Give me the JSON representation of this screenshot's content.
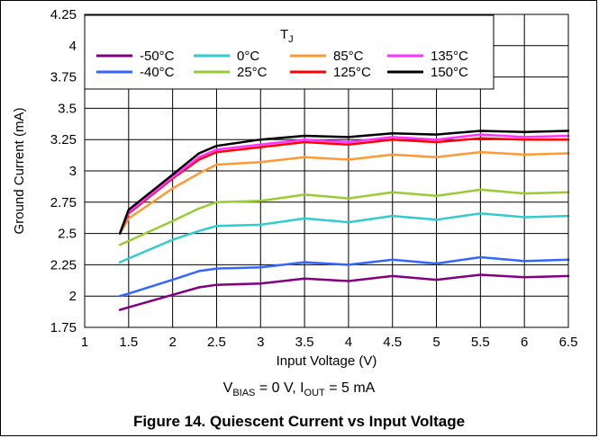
{
  "chart_data": {
    "type": "line",
    "title": "",
    "xlabel": "Input Voltage (V)",
    "ylabel": "Ground Current (mA)",
    "xlim": [
      1,
      6.5
    ],
    "ylim": [
      1.75,
      4.25
    ],
    "x_ticks": [
      "1",
      "1.5",
      "2",
      "2.5",
      "3",
      "3.5",
      "4",
      "4.5",
      "5",
      "5.5",
      "6",
      "6.5"
    ],
    "y_ticks": [
      "1.75",
      "2",
      "2.25",
      "2.5",
      "2.75",
      "3",
      "3.25",
      "3.5",
      "3.75",
      "4",
      "4.25"
    ],
    "grid": true,
    "legend": {
      "title_main": "T",
      "title_sub": "J",
      "placement": "top-right"
    },
    "series": [
      {
        "name": "-50°C",
        "color": "#800080",
        "x": [
          1.4,
          1.5,
          2,
          2.3,
          2.5,
          3,
          3.5,
          4,
          4.5,
          5,
          5.5,
          6,
          6.5
        ],
        "y": [
          1.89,
          1.91,
          2.01,
          2.07,
          2.09,
          2.1,
          2.14,
          2.12,
          2.16,
          2.13,
          2.17,
          2.15,
          2.16
        ]
      },
      {
        "name": "-40°C",
        "color": "#3366ff",
        "x": [
          1.4,
          1.5,
          2,
          2.3,
          2.5,
          3,
          3.5,
          4,
          4.5,
          5,
          5.5,
          6,
          6.5
        ],
        "y": [
          2.0,
          2.02,
          2.13,
          2.2,
          2.22,
          2.23,
          2.27,
          2.25,
          2.29,
          2.26,
          2.31,
          2.28,
          2.29
        ]
      },
      {
        "name": "0°C",
        "color": "#33cccc",
        "x": [
          1.4,
          1.5,
          2,
          2.3,
          2.5,
          3,
          3.5,
          4,
          4.5,
          5,
          5.5,
          6,
          6.5
        ],
        "y": [
          2.27,
          2.3,
          2.45,
          2.52,
          2.56,
          2.57,
          2.62,
          2.59,
          2.64,
          2.61,
          2.66,
          2.63,
          2.64
        ]
      },
      {
        "name": "25°C",
        "color": "#99cc33",
        "x": [
          1.4,
          1.5,
          2,
          2.3,
          2.5,
          3,
          3.5,
          4,
          4.5,
          5,
          5.5,
          6,
          6.5
        ],
        "y": [
          2.41,
          2.44,
          2.6,
          2.7,
          2.75,
          2.76,
          2.81,
          2.78,
          2.83,
          2.8,
          2.85,
          2.82,
          2.83
        ]
      },
      {
        "name": "85°C",
        "color": "#ff9933",
        "x": [
          1.4,
          1.5,
          2,
          2.3,
          2.5,
          3,
          3.5,
          4,
          4.5,
          5,
          5.5,
          6,
          6.5
        ],
        "y": [
          2.5,
          2.62,
          2.86,
          2.98,
          3.05,
          3.07,
          3.11,
          3.09,
          3.13,
          3.11,
          3.15,
          3.13,
          3.14
        ]
      },
      {
        "name": "125°C",
        "color": "#ff0000",
        "x": [
          1.4,
          1.5,
          2,
          2.3,
          2.5,
          3,
          3.5,
          4,
          4.5,
          5,
          5.5,
          6,
          6.5
        ],
        "y": [
          2.5,
          2.66,
          2.94,
          3.09,
          3.15,
          3.19,
          3.23,
          3.21,
          3.25,
          3.23,
          3.26,
          3.25,
          3.25
        ]
      },
      {
        "name": "135°C",
        "color": "#ff33ff",
        "x": [
          1.4,
          1.5,
          2,
          2.3,
          2.5,
          3,
          3.5,
          4,
          4.5,
          5,
          5.5,
          6,
          6.5
        ],
        "y": [
          2.5,
          2.67,
          2.95,
          3.11,
          3.17,
          3.21,
          3.25,
          3.23,
          3.27,
          3.25,
          3.29,
          3.27,
          3.28
        ]
      },
      {
        "name": "150°C",
        "color": "#000000",
        "x": [
          1.4,
          1.5,
          2,
          2.3,
          2.5,
          3,
          3.5,
          4,
          4.5,
          5,
          5.5,
          6,
          6.5
        ],
        "y": [
          2.5,
          2.69,
          2.97,
          3.14,
          3.2,
          3.25,
          3.28,
          3.27,
          3.3,
          3.29,
          3.32,
          3.31,
          3.32
        ]
      }
    ],
    "conditions": {
      "v_main": "V",
      "v_sub": "BIAS",
      "v_rest": " = 0 V, I",
      "i_sub": "OUT",
      "i_rest": " = 5 mA"
    },
    "caption": "Figure 14. Quiescent Current vs Input Voltage"
  }
}
